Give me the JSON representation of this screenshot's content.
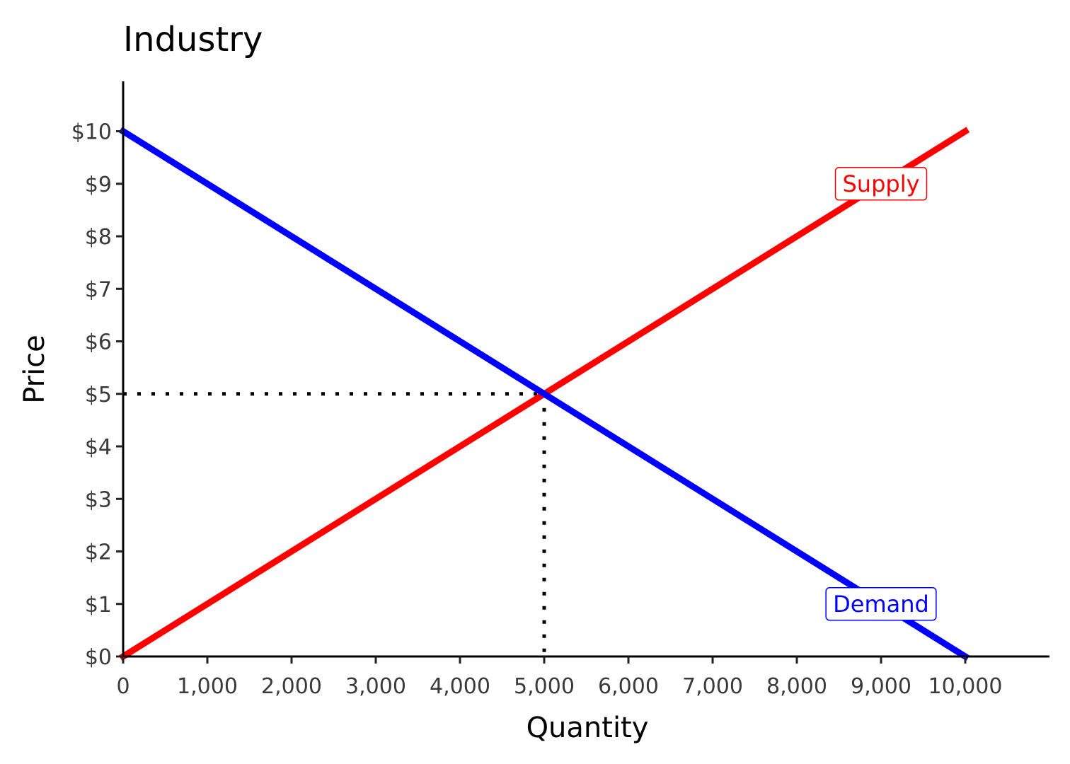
{
  "chart_data": {
    "type": "line",
    "title": "Industry",
    "xlabel": "Quantity",
    "ylabel": "Price",
    "xlim": [
      0,
      11000
    ],
    "ylim": [
      0,
      10.95
    ],
    "x_ticks": [
      0,
      1000,
      2000,
      3000,
      4000,
      5000,
      6000,
      7000,
      8000,
      9000,
      10000
    ],
    "x_tick_labels": [
      "0",
      "1,000",
      "2,000",
      "3,000",
      "4,000",
      "5,000",
      "6,000",
      "7,000",
      "8,000",
      "9,000",
      "10,000"
    ],
    "y_ticks": [
      0,
      1,
      2,
      3,
      4,
      5,
      6,
      7,
      8,
      9,
      10
    ],
    "y_tick_labels": [
      "$0",
      "$1",
      "$2",
      "$3",
      "$4",
      "$5",
      "$6",
      "$7",
      "$8",
      "$9",
      "$10"
    ],
    "grid": false,
    "series": [
      {
        "name": "Supply",
        "color": "#ff0000",
        "x": [
          0,
          10000
        ],
        "y": [
          0,
          10
        ],
        "label_at": {
          "x": 9000,
          "y": 9
        }
      },
      {
        "name": "Demand",
        "color": "#0000ff",
        "x": [
          0,
          10000
        ],
        "y": [
          10,
          0
        ],
        "label_at": {
          "x": 9000,
          "y": 1
        }
      }
    ],
    "equilibrium": {
      "x": 5000,
      "y": 5,
      "line_style": "dotted"
    }
  }
}
